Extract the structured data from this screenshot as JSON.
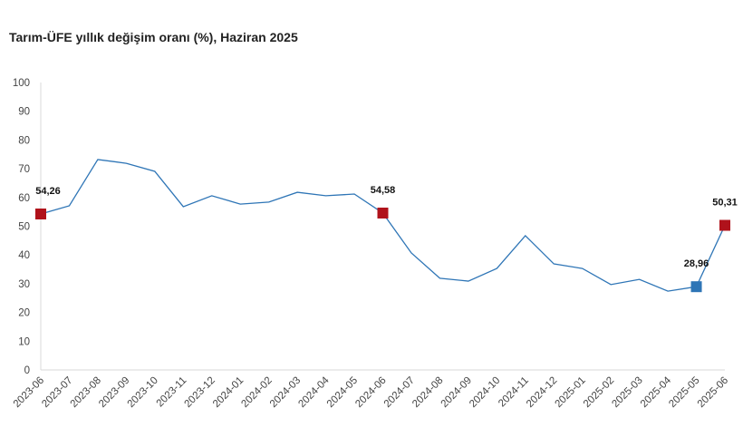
{
  "chart_data": {
    "type": "line",
    "title": "Tarım-ÜFE yıllık değişim oranı (%), Haziran 2025",
    "xlabel": "",
    "ylabel": "",
    "ylim": [
      0,
      100
    ],
    "yticks": [
      0,
      10,
      20,
      30,
      40,
      50,
      60,
      70,
      80,
      90,
      100
    ],
    "categories": [
      "2023-06",
      "2023-07",
      "2023-08",
      "2023-09",
      "2023-10",
      "2023-11",
      "2023-12",
      "2024-01",
      "2024-02",
      "2024-03",
      "2024-04",
      "2024-05",
      "2024-06",
      "2024-07",
      "2024-08",
      "2024-09",
      "2024-10",
      "2024-11",
      "2024-12",
      "2025-01",
      "2025-02",
      "2025-03",
      "2025-04",
      "2025-05",
      "2025-06"
    ],
    "series": [
      {
        "name": "Tarım-ÜFE",
        "color": "#2e75b6",
        "values": [
          54.26,
          57.1,
          73.2,
          71.9,
          69.1,
          56.8,
          60.6,
          57.7,
          58.4,
          61.8,
          60.6,
          61.2,
          54.58,
          40.7,
          31.9,
          30.9,
          35.3,
          46.7,
          36.9,
          35.3,
          29.7,
          31.5,
          27.4,
          28.96,
          50.31
        ]
      }
    ],
    "markers": [
      {
        "index": 0,
        "label": "54,26",
        "color": "#b0121b"
      },
      {
        "index": 12,
        "label": "54,58",
        "color": "#b0121b"
      },
      {
        "index": 23,
        "label": "28,96",
        "color": "#2e75b6"
      },
      {
        "index": 24,
        "label": "50,31",
        "color": "#b0121b"
      }
    ],
    "grid": false,
    "legend": "none"
  }
}
